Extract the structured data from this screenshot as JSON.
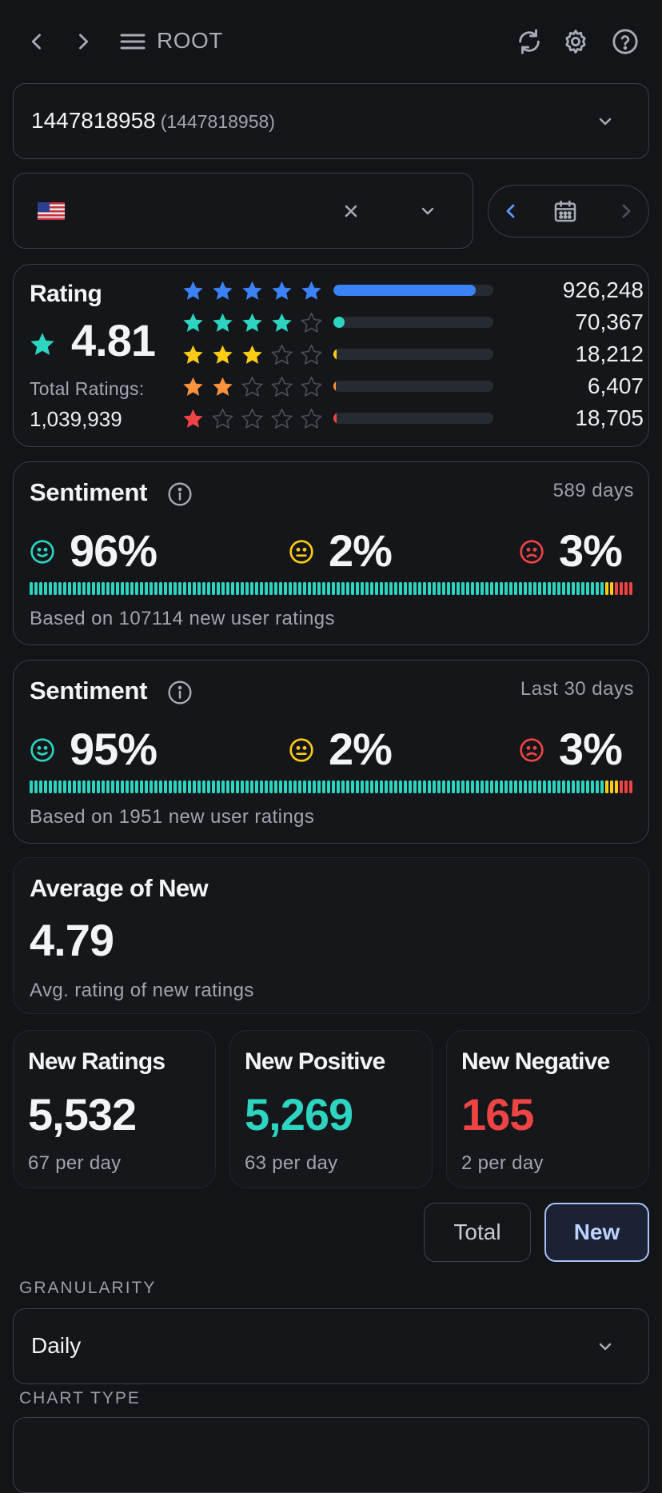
{
  "nav": {
    "title": "ROOT"
  },
  "app_selector": {
    "value": "1447818958",
    "sub": "(1447818958)"
  },
  "country": {
    "flag": "flag-us"
  },
  "rating": {
    "title": "Rating",
    "value": "4.81",
    "total_label": "Total Ratings:",
    "total": "1,039,939",
    "rows": [
      {
        "stars": 5,
        "count": "926,248",
        "fraction": 0.89,
        "color": "#3b82f6"
      },
      {
        "stars": 4,
        "count": "70,367",
        "fraction": 0.07,
        "color": "#2dd4bf"
      },
      {
        "stars": 3,
        "count": "18,212",
        "fraction": 0.02,
        "color": "#facc15"
      },
      {
        "stars": 2,
        "count": "6,407",
        "fraction": 0.007,
        "color": "#fb923c"
      },
      {
        "stars": 1,
        "count": "18,705",
        "fraction": 0.02,
        "color": "#ef4444"
      }
    ]
  },
  "sentiment_all": {
    "title": "Sentiment",
    "period": "589 days",
    "positive": "96%",
    "neutral": "2%",
    "negative": "3%",
    "note": "Based on 107114 new user ratings",
    "shares": [
      0.96,
      0.02,
      0.03
    ]
  },
  "sentiment_30": {
    "title": "Sentiment",
    "period": "Last 30 days",
    "positive": "95%",
    "neutral": "2%",
    "negative": "3%",
    "note": "Based on 1951 new user ratings",
    "shares": [
      0.95,
      0.02,
      0.03
    ]
  },
  "average": {
    "title": "Average of New",
    "value": "4.79",
    "sub": "Avg. rating of new ratings"
  },
  "stats": [
    {
      "title": "New Ratings",
      "value": "5,532",
      "sub": "67 per day",
      "color": "#f3f4f6"
    },
    {
      "title": "New Positive",
      "value": "5,269",
      "sub": "63 per day",
      "color": "#2dd4bf"
    },
    {
      "title": "New Negative",
      "value": "165",
      "sub": "2 per day",
      "color": "#ef4444"
    }
  ],
  "toggle": {
    "total": "Total",
    "new": "New",
    "selected": "New"
  },
  "granularity": {
    "label": "GRANULARITY",
    "value": "Daily"
  },
  "chart_type": {
    "label": "CHART TYPE"
  },
  "colors": {
    "positive": "#2dd4bf",
    "neutral": "#facc15",
    "negative": "#ef4444",
    "accent": "#3b82f6"
  }
}
